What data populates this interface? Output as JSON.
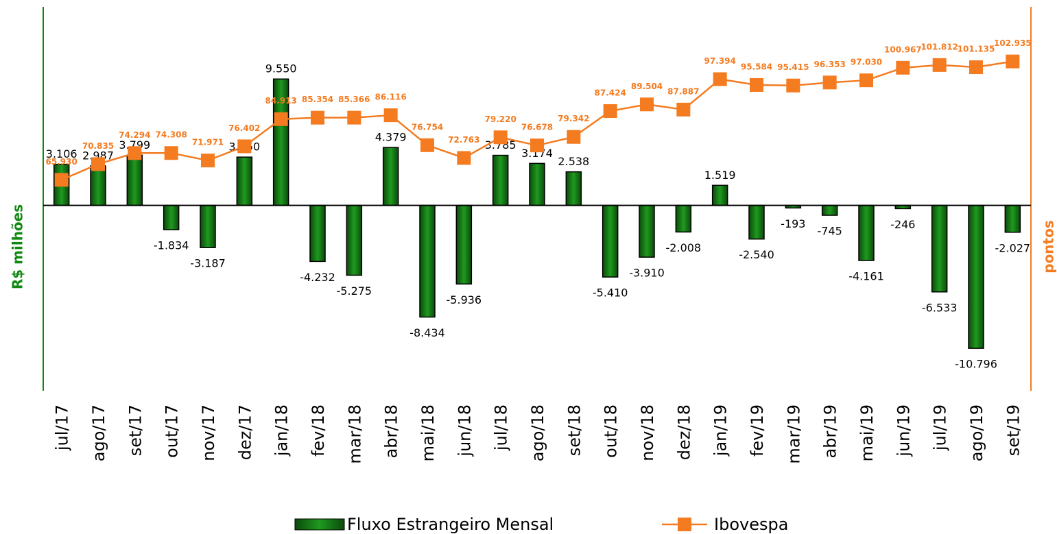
{
  "chart_data": {
    "type": "combo",
    "y_label": "R$ milhões",
    "y2_label": "pontos",
    "categories": [
      "jul/17",
      "ago/17",
      "set/17",
      "out/17",
      "nov/17",
      "dez/17",
      "jan/18",
      "fev/18",
      "mar/18",
      "abr/18",
      "mai/18",
      "jun/18",
      "jul/18",
      "ago/18",
      "set/18",
      "out/18",
      "nov/18",
      "dez/18",
      "jan/19",
      "fev/19",
      "mar/19",
      "abr/19",
      "mai/19",
      "jun/19",
      "jul/19",
      "ago/19",
      "set/19"
    ],
    "series": [
      {
        "name": "Fluxo Estrangeiro Mensal",
        "type": "bar",
        "color": "#117711",
        "values": [
          3106,
          2987,
          3799,
          -1834,
          -3187,
          3650,
          9550,
          -4232,
          -5275,
          4379,
          -8434,
          -5936,
          3785,
          3174,
          2538,
          -5410,
          -3910,
          -2008,
          1519,
          -2540,
          -193,
          -745,
          -4161,
          -246,
          -6533,
          -10796,
          -2027
        ],
        "value_labels": [
          "3.106",
          "2.987",
          "3.799",
          "-1.834",
          "-3.187",
          "3.650",
          "9.550",
          "-4.232",
          "-5.275",
          "4.379",
          "-8.434",
          "-5.936",
          "3.785",
          "3.174",
          "2.538",
          "-5.410",
          "-3.910",
          "-2.008",
          "1.519",
          "-2.540",
          "-193",
          "-745",
          "-4.161",
          "-246",
          "-6.533",
          "-10.796",
          "-2.027"
        ]
      },
      {
        "name": "Ibovespa",
        "type": "line",
        "axis": "y2",
        "color": "#f47b20",
        "values": [
          65930,
          70835,
          74294,
          74308,
          71971,
          76402,
          84913,
          85354,
          85366,
          86116,
          76754,
          72763,
          79220,
          76678,
          79342,
          87424,
          89504,
          87887,
          97394,
          95584,
          95415,
          96353,
          97030,
          100967,
          101812,
          101135,
          102935
        ],
        "value_labels": [
          "65.930",
          "70.835",
          "74.294",
          "74.308",
          "71.971",
          "76.402",
          "84.913",
          "85.354",
          "85.366",
          "86.116",
          "76.754",
          "72.763",
          "79.220",
          "76.678",
          "79.342",
          "87.424",
          "89.504",
          "87.887",
          "97.394",
          "95.584",
          "95.415",
          "96.353",
          "97.030",
          "100.967",
          "101.812",
          "101.135",
          "102.935"
        ]
      }
    ],
    "ylim": [
      -14000,
      15000
    ],
    "y2lim": [
      0,
      120000
    ],
    "grid": false
  }
}
